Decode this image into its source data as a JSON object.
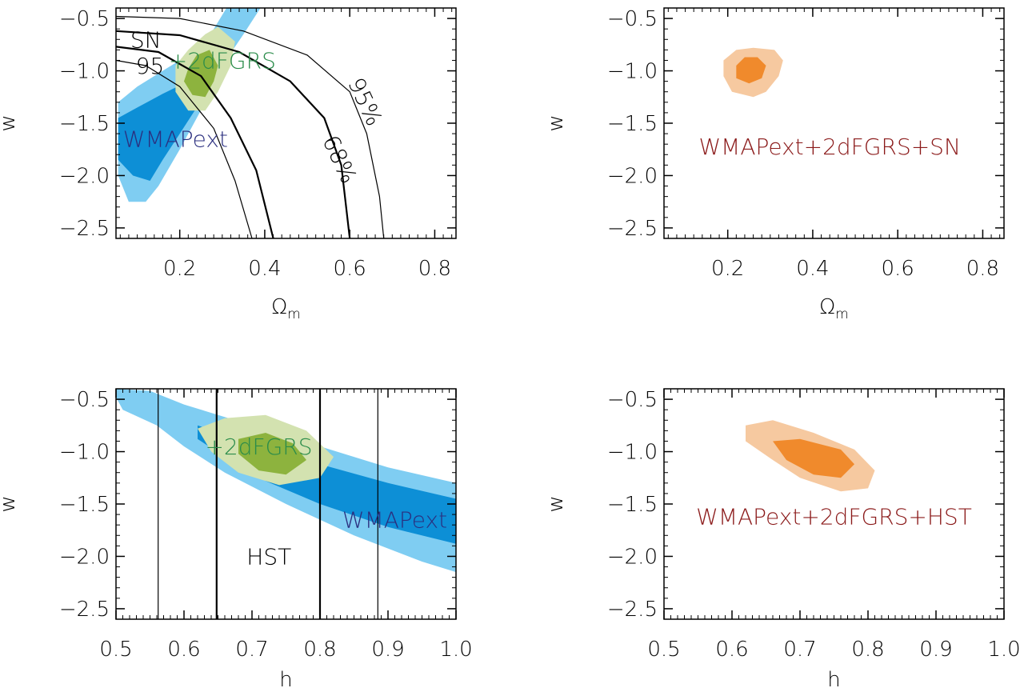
{
  "colors": {
    "wmap_outer": "#7fcdf2",
    "wmap_inner": "#0d8fd6",
    "twodf_outer": "#d3e2b0",
    "twodf_inner": "#8db33e",
    "combo_outer": "#f6c9a0",
    "combo_inner": "#f08a2c",
    "text_blue": "#2b2f7f",
    "text_green": "#2a8c4a",
    "text_red": "#8b1a1a"
  },
  "chart_data": [
    {
      "type": "contour",
      "xlabel": "Ω",
      "xlabel_sub": "m",
      "ylabel": "w",
      "xlim": [
        0.05,
        0.85
      ],
      "ylim": [
        -2.6,
        -0.4
      ],
      "xticks": [
        "0.2",
        "0.4",
        "0.6",
        "0.8"
      ],
      "xtick_values": [
        0.2,
        0.4,
        0.6,
        0.8
      ],
      "yticks": [
        "−0.5",
        "−1.0",
        "−1.5",
        "−2.0",
        "−2.5"
      ],
      "ytick_values": [
        -0.5,
        -1.0,
        -1.5,
        -2.0,
        -2.5
      ],
      "annotations": [
        {
          "text": "SN",
          "x": 0.12,
          "y": -0.7,
          "color": "#000000"
        },
        {
          "text": "+2dFGRS",
          "x": 0.3,
          "y": -0.9,
          "color": "#2a8c4a"
        },
        {
          "text": "WMAPext",
          "x": 0.19,
          "y": -1.65,
          "color": "#2b2f7f"
        },
        {
          "text": "95%",
          "x": 0.62,
          "y": -1.25,
          "color": "#000000"
        },
        {
          "text": "68%",
          "x": 0.56,
          "y": -1.8,
          "color": "#000000"
        },
        {
          "text": "95",
          "x": 0.13,
          "y": -0.95,
          "color": "#000000"
        }
      ],
      "regions": [
        {
          "name": "WMAPext 95%",
          "color": "#7fcdf2",
          "points": [
            [
              0.055,
              -1.3
            ],
            [
              0.1,
              -1.15
            ],
            [
              0.16,
              -1.0
            ],
            [
              0.24,
              -0.8
            ],
            [
              0.28,
              -0.6
            ],
            [
              0.31,
              -0.4
            ],
            [
              0.39,
              -0.4
            ],
            [
              0.35,
              -0.65
            ],
            [
              0.3,
              -0.95
            ],
            [
              0.26,
              -1.3
            ],
            [
              0.2,
              -1.75
            ],
            [
              0.15,
              -2.1
            ],
            [
              0.12,
              -2.25
            ],
            [
              0.08,
              -2.25
            ],
            [
              0.055,
              -2.0
            ]
          ]
        },
        {
          "name": "WMAPext 68%",
          "color": "#0d8fd6",
          "points": [
            [
              0.055,
              -1.45
            ],
            [
              0.1,
              -1.35
            ],
            [
              0.16,
              -1.22
            ],
            [
              0.22,
              -1.1
            ],
            [
              0.24,
              -1.35
            ],
            [
              0.2,
              -1.6
            ],
            [
              0.16,
              -1.85
            ],
            [
              0.13,
              -2.05
            ],
            [
              0.09,
              -2.0
            ],
            [
              0.055,
              -1.85
            ]
          ]
        },
        {
          "name": "+2dFGRS 95%",
          "color": "#d3e2b0",
          "points": [
            [
              0.19,
              -0.95
            ],
            [
              0.22,
              -0.8
            ],
            [
              0.26,
              -0.65
            ],
            [
              0.29,
              -0.58
            ],
            [
              0.33,
              -0.72
            ],
            [
              0.32,
              -0.95
            ],
            [
              0.29,
              -1.2
            ],
            [
              0.26,
              -1.38
            ],
            [
              0.22,
              -1.38
            ],
            [
              0.19,
              -1.2
            ]
          ]
        },
        {
          "name": "+2dFGRS 68%",
          "color": "#8db33e",
          "points": [
            [
              0.22,
              -0.98
            ],
            [
              0.24,
              -0.85
            ],
            [
              0.27,
              -0.8
            ],
            [
              0.29,
              -0.95
            ],
            [
              0.28,
              -1.1
            ],
            [
              0.26,
              -1.25
            ],
            [
              0.23,
              -1.23
            ],
            [
              0.21,
              -1.1
            ]
          ]
        }
      ],
      "curves": [
        {
          "name": "SN 95% outer",
          "width": 1.2,
          "points": [
            [
              0.05,
              -0.48
            ],
            [
              0.2,
              -0.5
            ],
            [
              0.35,
              -0.62
            ],
            [
              0.5,
              -0.85
            ],
            [
              0.6,
              -1.2
            ],
            [
              0.64,
              -1.6
            ],
            [
              0.67,
              -2.2
            ],
            [
              0.68,
              -2.6
            ]
          ]
        },
        {
          "name": "SN 68% outer",
          "width": 2.2,
          "points": [
            [
              0.05,
              -0.62
            ],
            [
              0.2,
              -0.66
            ],
            [
              0.34,
              -0.82
            ],
            [
              0.46,
              -1.1
            ],
            [
              0.54,
              -1.45
            ],
            [
              0.58,
              -1.9
            ],
            [
              0.6,
              -2.6
            ]
          ]
        },
        {
          "name": "SN 68% inner",
          "width": 2.2,
          "points": [
            [
              0.05,
              -0.77
            ],
            [
              0.15,
              -0.82
            ],
            [
              0.25,
              -1.05
            ],
            [
              0.32,
              -1.45
            ],
            [
              0.38,
              -1.95
            ],
            [
              0.42,
              -2.6
            ]
          ]
        },
        {
          "name": "SN 95% inner",
          "width": 1.2,
          "points": [
            [
              0.05,
              -0.9
            ],
            [
              0.12,
              -0.95
            ],
            [
              0.2,
              -1.15
            ],
            [
              0.28,
              -1.55
            ],
            [
              0.33,
              -2.05
            ],
            [
              0.37,
              -2.6
            ]
          ]
        }
      ]
    },
    {
      "type": "contour",
      "xlabel": "Ω",
      "xlabel_sub": "m",
      "ylabel": "w",
      "xlim": [
        0.05,
        0.85
      ],
      "ylim": [
        -2.6,
        -0.4
      ],
      "xticks": [
        "0.2",
        "0.4",
        "0.6",
        "0.8"
      ],
      "xtick_values": [
        0.2,
        0.4,
        0.6,
        0.8
      ],
      "yticks": [
        "−0.5",
        "−1.0",
        "−1.5",
        "−2.0",
        "−2.5"
      ],
      "ytick_values": [
        -0.5,
        -1.0,
        -1.5,
        -2.0,
        -2.5
      ],
      "annotations": [
        {
          "text": "WMAPext+2dFGRS+SN",
          "x": 0.44,
          "y": -1.72,
          "color": "#8b1a1a"
        }
      ],
      "regions": [
        {
          "name": "combined 95%",
          "color": "#f6c9a0",
          "points": [
            [
              0.19,
              -0.9
            ],
            [
              0.22,
              -0.8
            ],
            [
              0.26,
              -0.78
            ],
            [
              0.31,
              -0.8
            ],
            [
              0.33,
              -0.9
            ],
            [
              0.32,
              -1.05
            ],
            [
              0.29,
              -1.2
            ],
            [
              0.26,
              -1.25
            ],
            [
              0.21,
              -1.2
            ],
            [
              0.19,
              -1.05
            ]
          ]
        },
        {
          "name": "combined 68%",
          "color": "#f08a2c",
          "points": [
            [
              0.22,
              -0.95
            ],
            [
              0.24,
              -0.87
            ],
            [
              0.27,
              -0.87
            ],
            [
              0.29,
              -0.95
            ],
            [
              0.28,
              -1.07
            ],
            [
              0.25,
              -1.12
            ],
            [
              0.22,
              -1.07
            ]
          ]
        }
      ],
      "curves": []
    },
    {
      "type": "contour",
      "xlabel": "h",
      "ylabel": "w",
      "xlim": [
        0.5,
        1.0
      ],
      "ylim": [
        -2.6,
        -0.4
      ],
      "xticks": [
        "0.5",
        "0.6",
        "0.7",
        "0.8",
        "0.9",
        "1.0"
      ],
      "xtick_values": [
        0.5,
        0.6,
        0.7,
        0.8,
        0.9,
        1.0
      ],
      "yticks": [
        "−0.5",
        "−1.0",
        "−1.5",
        "−2.0",
        "−2.5"
      ],
      "ytick_values": [
        -0.5,
        -1.0,
        -1.5,
        -2.0,
        -2.5
      ],
      "annotations": [
        {
          "text": "+2dFGRS",
          "x": 0.71,
          "y": -0.95,
          "color": "#2a8c4a"
        },
        {
          "text": "WMAPext",
          "x": 0.91,
          "y": -1.65,
          "color": "#2b2f7f"
        },
        {
          "text": "HST",
          "x": 0.725,
          "y": -2.0,
          "color": "#000000"
        }
      ],
      "regions": [
        {
          "name": "WMAPext 95%",
          "color": "#7fcdf2",
          "points": [
            [
              0.5,
              -0.4
            ],
            [
              0.55,
              -0.42
            ],
            [
              0.6,
              -0.55
            ],
            [
              0.7,
              -0.75
            ],
            [
              0.8,
              -0.95
            ],
            [
              0.9,
              -1.15
            ],
            [
              1.0,
              -1.3
            ],
            [
              1.0,
              -2.15
            ],
            [
              0.95,
              -2.05
            ],
            [
              0.85,
              -1.8
            ],
            [
              0.75,
              -1.5
            ],
            [
              0.66,
              -1.2
            ],
            [
              0.6,
              -0.95
            ],
            [
              0.56,
              -0.75
            ],
            [
              0.51,
              -0.6
            ],
            [
              0.5,
              -0.48
            ]
          ]
        },
        {
          "name": "WMAPext 68%",
          "color": "#0d8fd6",
          "points": [
            [
              0.62,
              -0.75
            ],
            [
              0.7,
              -0.92
            ],
            [
              0.8,
              -1.12
            ],
            [
              0.9,
              -1.3
            ],
            [
              1.0,
              -1.45
            ],
            [
              1.0,
              -1.88
            ],
            [
              0.9,
              -1.72
            ],
            [
              0.8,
              -1.5
            ],
            [
              0.72,
              -1.28
            ],
            [
              0.66,
              -1.05
            ],
            [
              0.62,
              -0.88
            ]
          ]
        },
        {
          "name": "+2dFGRS 95%",
          "color": "#d3e2b0",
          "points": [
            [
              0.62,
              -0.78
            ],
            [
              0.66,
              -0.68
            ],
            [
              0.72,
              -0.65
            ],
            [
              0.78,
              -0.8
            ],
            [
              0.82,
              -1.05
            ],
            [
              0.8,
              -1.25
            ],
            [
              0.74,
              -1.32
            ],
            [
              0.68,
              -1.2
            ],
            [
              0.64,
              -1.0
            ]
          ]
        },
        {
          "name": "+2dFGRS 68%",
          "color": "#8db33e",
          "points": [
            [
              0.68,
              -0.88
            ],
            [
              0.72,
              -0.82
            ],
            [
              0.76,
              -0.92
            ],
            [
              0.78,
              -1.08
            ],
            [
              0.75,
              -1.22
            ],
            [
              0.71,
              -1.18
            ],
            [
              0.68,
              -1.02
            ]
          ]
        }
      ],
      "curves": [
        {
          "name": "HST 95% lower",
          "width": 1.2,
          "points": [
            [
              0.562,
              -2.6
            ],
            [
              0.562,
              -0.4
            ]
          ]
        },
        {
          "name": "HST 68% lower",
          "width": 2.2,
          "points": [
            [
              0.648,
              -2.6
            ],
            [
              0.648,
              -0.4
            ]
          ]
        },
        {
          "name": "HST 68% upper",
          "width": 2.2,
          "points": [
            [
              0.8,
              -2.6
            ],
            [
              0.8,
              -0.4
            ]
          ]
        },
        {
          "name": "HST 95% upper",
          "width": 1.2,
          "points": [
            [
              0.885,
              -2.6
            ],
            [
              0.885,
              -0.4
            ]
          ]
        }
      ]
    },
    {
      "type": "contour",
      "xlabel": "h",
      "ylabel": "w",
      "xlim": [
        0.5,
        1.0
      ],
      "ylim": [
        -2.6,
        -0.4
      ],
      "xticks": [
        "0.5",
        "0.6",
        "0.7",
        "0.8",
        "0.9",
        "1.0"
      ],
      "xtick_values": [
        0.5,
        0.6,
        0.7,
        0.8,
        0.9,
        1.0
      ],
      "yticks": [
        "−0.5",
        "−1.0",
        "−1.5",
        "−2.0",
        "−2.5"
      ],
      "ytick_values": [
        -0.5,
        -1.0,
        -1.5,
        -2.0,
        -2.5
      ],
      "annotations": [
        {
          "text": "WMAPext+2dFGRS+HST",
          "x": 0.75,
          "y": -1.62,
          "color": "#8b1a1a"
        }
      ],
      "regions": [
        {
          "name": "combined 95%",
          "color": "#f6c9a0",
          "points": [
            [
              0.62,
              -0.75
            ],
            [
              0.66,
              -0.7
            ],
            [
              0.72,
              -0.82
            ],
            [
              0.78,
              -0.98
            ],
            [
              0.81,
              -1.18
            ],
            [
              0.8,
              -1.35
            ],
            [
              0.76,
              -1.38
            ],
            [
              0.7,
              -1.25
            ],
            [
              0.66,
              -1.08
            ],
            [
              0.62,
              -0.9
            ]
          ]
        },
        {
          "name": "combined 68%",
          "color": "#f08a2c",
          "points": [
            [
              0.66,
              -0.9
            ],
            [
              0.7,
              -0.88
            ],
            [
              0.76,
              -0.98
            ],
            [
              0.78,
              -1.12
            ],
            [
              0.76,
              -1.25
            ],
            [
              0.72,
              -1.22
            ],
            [
              0.68,
              -1.08
            ]
          ]
        }
      ],
      "curves": []
    }
  ]
}
